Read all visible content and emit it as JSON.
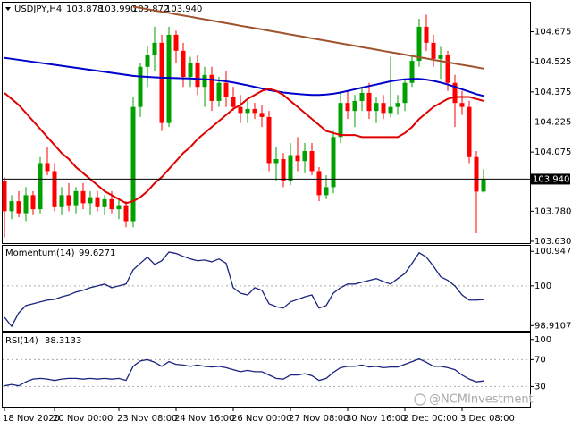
{
  "chart_data": [
    {
      "type": "candlestick",
      "title": "USDJPY,H4",
      "header_ohlc": [
        "103.878",
        "103.990",
        "103.872",
        "103.940"
      ],
      "categories": [
        "18 Nov 2020",
        null,
        null,
        null,
        null,
        null,
        null,
        "20 Nov 00:00",
        null,
        null,
        null,
        null,
        null,
        null,
        null,
        null,
        "23 Nov 08:00",
        null,
        null,
        null,
        null,
        null,
        null,
        null,
        "24 Nov 16:00",
        null,
        null,
        null,
        null,
        null,
        null,
        null,
        "26 Nov 00:00",
        null,
        null,
        null,
        null,
        null,
        null,
        null,
        "27 Nov 08:00",
        null,
        null,
        null,
        null,
        null,
        null,
        null,
        "30 Nov 16:00",
        null,
        null,
        null,
        null,
        null,
        null,
        null,
        "2 Dec 00:00",
        null,
        null,
        null,
        null,
        null,
        null,
        null,
        "3 Dec 08:00",
        null,
        null,
        null
      ],
      "open": [
        103.93,
        103.78,
        103.83,
        103.77,
        103.86,
        103.79,
        104.02,
        103.98,
        103.8,
        103.86,
        103.81,
        103.88,
        103.82,
        103.85,
        103.8,
        103.84,
        103.79,
        103.81,
        103.73,
        104.3,
        104.5,
        104.56,
        104.62,
        104.22,
        104.66,
        104.58,
        104.45,
        104.52,
        104.4,
        104.46,
        104.33,
        104.42,
        104.35,
        104.3,
        104.27,
        104.29,
        104.27,
        104.25,
        104.02,
        104.04,
        103.93,
        104.06,
        104.03,
        104.08,
        103.98,
        103.86,
        103.9,
        104.15,
        104.32,
        104.28,
        104.33,
        104.37,
        104.28,
        104.32,
        104.27,
        104.3,
        104.32,
        104.42,
        104.53,
        104.7,
        104.62,
        104.54,
        104.56,
        104.42,
        104.32,
        104.3,
        104.05,
        103.878
      ],
      "high": [
        103.95,
        103.86,
        103.88,
        103.9,
        103.88,
        104.05,
        104.1,
        104.02,
        103.9,
        103.92,
        103.9,
        103.92,
        103.88,
        103.88,
        103.86,
        103.88,
        103.84,
        103.83,
        104.35,
        104.52,
        104.6,
        104.7,
        104.66,
        104.7,
        104.68,
        104.62,
        104.55,
        104.56,
        104.5,
        104.5,
        104.45,
        104.48,
        104.4,
        104.36,
        104.33,
        104.32,
        104.31,
        104.28,
        104.1,
        104.07,
        104.12,
        104.15,
        104.12,
        104.12,
        104.0,
        103.96,
        104.18,
        104.38,
        104.38,
        104.36,
        104.4,
        104.42,
        104.35,
        104.36,
        104.55,
        104.36,
        104.44,
        104.56,
        104.74,
        104.76,
        104.66,
        104.6,
        104.58,
        104.46,
        104.38,
        104.33,
        104.08,
        103.99
      ],
      "low": [
        103.65,
        103.74,
        103.75,
        103.73,
        103.76,
        103.77,
        103.96,
        103.78,
        103.76,
        103.78,
        103.77,
        103.79,
        103.76,
        103.78,
        103.76,
        103.77,
        103.74,
        103.7,
        103.7,
        104.25,
        104.4,
        104.48,
        104.18,
        104.2,
        104.52,
        104.4,
        104.4,
        104.36,
        104.3,
        104.28,
        104.3,
        104.3,
        104.28,
        104.22,
        104.22,
        104.24,
        104.2,
        103.98,
        103.93,
        103.9,
        103.91,
        103.98,
        103.97,
        103.96,
        103.83,
        103.84,
        103.87,
        104.12,
        104.24,
        104.2,
        104.28,
        104.24,
        104.22,
        104.24,
        104.25,
        104.26,
        104.28,
        104.4,
        104.5,
        104.58,
        104.5,
        104.44,
        104.38,
        104.2,
        104.26,
        104.02,
        103.67,
        103.872
      ],
      "close": [
        103.78,
        103.83,
        103.77,
        103.86,
        103.79,
        104.02,
        103.98,
        103.8,
        103.86,
        103.81,
        103.88,
        103.82,
        103.85,
        103.8,
        103.84,
        103.79,
        103.81,
        103.73,
        104.3,
        104.5,
        104.56,
        104.62,
        104.22,
        104.66,
        104.58,
        104.45,
        104.52,
        104.4,
        104.46,
        104.33,
        104.42,
        104.35,
        104.3,
        104.27,
        104.29,
        104.27,
        104.25,
        104.02,
        104.04,
        103.93,
        104.06,
        104.03,
        104.08,
        103.98,
        103.86,
        103.9,
        104.15,
        104.32,
        104.28,
        104.33,
        104.37,
        104.28,
        104.32,
        104.27,
        104.3,
        104.32,
        104.42,
        104.53,
        104.7,
        104.62,
        104.54,
        104.56,
        104.42,
        104.32,
        104.3,
        104.05,
        103.878,
        103.94
      ],
      "up_color": "#00a000",
      "down_color": "#ff0000",
      "lines": [
        {
          "color": "#a0522d",
          "values": [
            null,
            null,
            null,
            null,
            null,
            null,
            null,
            null,
            null,
            null,
            null,
            null,
            null,
            null,
            null,
            null,
            null,
            null,
            104.8,
            104.794,
            104.787,
            104.781,
            104.775,
            104.769,
            104.762,
            104.756,
            104.75,
            104.743,
            104.737,
            104.731,
            104.724,
            104.718,
            104.712,
            104.705,
            104.699,
            104.693,
            104.687,
            104.68,
            104.674,
            104.668,
            104.661,
            104.655,
            104.649,
            104.642,
            104.636,
            104.63,
            104.624,
            104.617,
            104.611,
            104.605,
            104.598,
            104.592,
            104.586,
            104.579,
            104.573,
            104.567,
            104.561,
            104.554,
            104.548,
            104.542,
            104.535,
            104.529,
            104.523,
            104.516,
            104.51,
            104.504,
            104.498,
            104.491
          ]
        },
        {
          "color": "#0000cc",
          "values": [
            104.545,
            104.54,
            104.535,
            104.53,
            104.525,
            104.52,
            104.515,
            104.51,
            104.505,
            104.5,
            104.495,
            104.49,
            104.485,
            104.48,
            104.475,
            104.47,
            104.465,
            104.46,
            104.455,
            104.452,
            104.45,
            104.448,
            104.446,
            104.445,
            104.444,
            104.443,
            104.442,
            104.44,
            104.438,
            104.436,
            104.432,
            104.428,
            104.422,
            104.415,
            104.408,
            104.4,
            104.392,
            104.384,
            104.378,
            104.372,
            104.368,
            104.365,
            104.362,
            104.36,
            104.36,
            104.362,
            104.366,
            104.372,
            104.38,
            104.388,
            104.396,
            104.404,
            104.412,
            104.42,
            104.428,
            104.434,
            104.438,
            104.44,
            104.44,
            104.436,
            104.43,
            104.422,
            104.412,
            104.4,
            104.388,
            104.376,
            104.364,
            104.355
          ]
        },
        {
          "color": "#e00000",
          "values": [
            104.37,
            104.34,
            104.31,
            104.27,
            104.23,
            104.19,
            104.15,
            104.11,
            104.07,
            104.04,
            104.0,
            103.97,
            103.94,
            103.91,
            103.88,
            103.86,
            103.84,
            103.82,
            103.83,
            103.85,
            103.88,
            103.92,
            103.95,
            103.99,
            104.03,
            104.07,
            104.1,
            104.14,
            104.17,
            104.2,
            104.23,
            104.26,
            104.29,
            104.31,
            104.34,
            104.36,
            104.38,
            104.39,
            104.38,
            104.36,
            104.33,
            104.3,
            104.27,
            104.24,
            104.21,
            104.18,
            104.17,
            104.16,
            104.16,
            104.16,
            104.15,
            104.15,
            104.15,
            104.15,
            104.15,
            104.15,
            104.17,
            104.2,
            104.24,
            104.27,
            104.3,
            104.32,
            104.34,
            104.35,
            104.35,
            104.35,
            104.34,
            104.33
          ]
        }
      ],
      "current_price": {
        "value": 103.94,
        "label": "103.940"
      },
      "ylim": [
        103.621,
        104.82
      ],
      "yticks": [
        104.675,
        104.525,
        104.375,
        104.225,
        104.075,
        {
          "value": 103.78,
          "label": "103.780"
        },
        {
          "value": 103.63,
          "label": "103.630"
        }
      ],
      "watermark": "@NCMInvestment"
    },
    {
      "type": "line",
      "title": "Momentum(14)",
      "title_value": "99.6271",
      "color": "#1a237e",
      "values": [
        99.14,
        98.89,
        99.26,
        99.46,
        99.51,
        99.56,
        99.61,
        99.63,
        99.7,
        99.75,
        99.83,
        99.88,
        99.95,
        100.0,
        100.05,
        99.95,
        100.0,
        100.05,
        100.44,
        100.62,
        100.79,
        100.59,
        100.69,
        100.93,
        100.89,
        100.81,
        100.74,
        100.69,
        100.71,
        100.66,
        100.74,
        100.62,
        99.95,
        99.8,
        99.75,
        99.95,
        99.88,
        99.51,
        99.43,
        99.39,
        99.56,
        99.63,
        99.7,
        99.75,
        99.39,
        99.46,
        99.8,
        99.95,
        100.05,
        100.05,
        100.1,
        100.15,
        100.2,
        100.12,
        100.05,
        100.2,
        100.34,
        100.62,
        100.91,
        100.79,
        100.54,
        100.25,
        100.15,
        100.0,
        99.75,
        99.61,
        99.61,
        99.6271
      ],
      "ylim": [
        98.77,
        101.1
      ],
      "yticks": [
        100.9472,
        100,
        98.9107
      ],
      "levels": [
        100
      ]
    },
    {
      "type": "line",
      "title": "RSI(14)",
      "title_value": "38.3133",
      "color": "#1a237e",
      "values": [
        31,
        33,
        31,
        37,
        41,
        42,
        41,
        39,
        41,
        42,
        42,
        41,
        42,
        41,
        42,
        41,
        42,
        39,
        60,
        68,
        70,
        66,
        60,
        67,
        63,
        62,
        60,
        62,
        60,
        59,
        60,
        58,
        55,
        52,
        54,
        52,
        52,
        47,
        42,
        41,
        47,
        47,
        49,
        46,
        39,
        42,
        51,
        58,
        60,
        60,
        62,
        59,
        60,
        58,
        59,
        59,
        63,
        67,
        71,
        66,
        60,
        60,
        58,
        55,
        47,
        41,
        37,
        38.3133
      ],
      "ylim": [
        0,
        109
      ],
      "yticks": [
        100,
        70,
        30
      ],
      "levels": [
        70,
        30
      ]
    }
  ]
}
